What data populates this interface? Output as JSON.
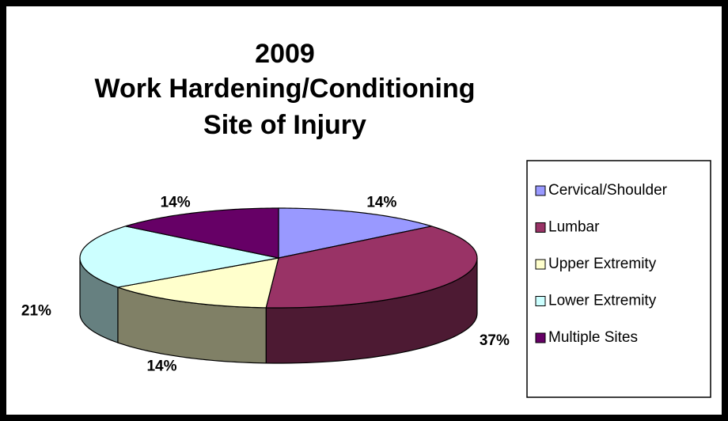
{
  "chart_data": {
    "type": "pie3d",
    "title": [
      "2009",
      "Work Hardening/Conditioning",
      "Site of Injury"
    ],
    "categories": [
      "Cervical/Shoulder",
      "Lumbar",
      "Upper Extremity",
      "Lower Extremity",
      "Multiple Sites"
    ],
    "values": [
      14,
      37,
      14,
      21,
      14
    ],
    "value_labels": [
      "14%",
      "37%",
      "14%",
      "21%",
      "14%"
    ],
    "colors": [
      "#9999ff",
      "#993366",
      "#ffffcc",
      "#ccffff",
      "#660066"
    ],
    "legend": "right"
  }
}
